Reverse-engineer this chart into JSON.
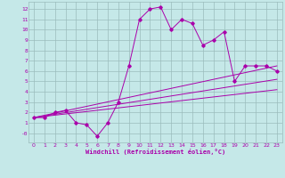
{
  "title": "",
  "xlabel": "Windchill (Refroidissement éolien,°C)",
  "ylabel": "",
  "bg_color": "#c5e8e8",
  "grid_color": "#9bbcbc",
  "line_color": "#aa00aa",
  "xlim": [
    -0.5,
    23.5
  ],
  "ylim": [
    -0.9,
    12.7
  ],
  "xticks": [
    0,
    1,
    2,
    3,
    4,
    5,
    6,
    7,
    8,
    9,
    10,
    11,
    12,
    13,
    14,
    15,
    16,
    17,
    18,
    19,
    20,
    21,
    22,
    23
  ],
  "yticks": [
    0,
    1,
    2,
    3,
    4,
    5,
    6,
    7,
    8,
    9,
    10,
    11,
    12
  ],
  "ytick_labels": [
    "-0",
    "1",
    "2",
    "3",
    "4",
    "5",
    "6",
    "7",
    "8",
    "9",
    "10",
    "11",
    "12"
  ],
  "series1_x": [
    0,
    1,
    2,
    3,
    4,
    5,
    6,
    7,
    8,
    9,
    10,
    11,
    12,
    13,
    14,
    15,
    16,
    17,
    18,
    19,
    20,
    21,
    22,
    23
  ],
  "series1_y": [
    1.5,
    1.5,
    2.0,
    2.2,
    1.0,
    0.8,
    -0.3,
    1.0,
    3.0,
    6.5,
    11.0,
    12.0,
    12.2,
    10.0,
    11.0,
    10.6,
    8.5,
    9.0,
    9.8,
    5.0,
    6.5,
    6.5,
    6.5,
    6.0
  ],
  "series2_x": [
    0,
    23
  ],
  "series2_y": [
    1.5,
    6.5
  ],
  "series3_x": [
    0,
    23
  ],
  "series3_y": [
    1.5,
    5.2
  ],
  "series4_x": [
    0,
    23
  ],
  "series4_y": [
    1.5,
    4.2
  ],
  "tick_fontsize": 4.5,
  "xlabel_fontsize": 5.0
}
